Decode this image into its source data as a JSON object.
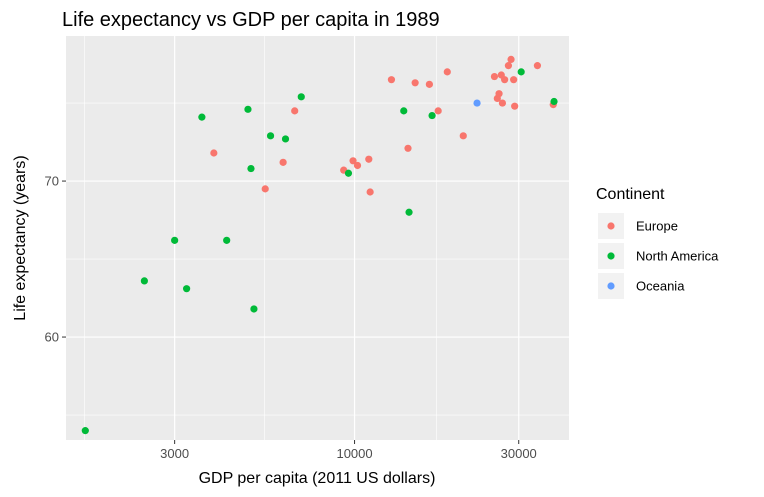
{
  "chart_data": {
    "type": "scatter",
    "title": "Life expectancy vs GDP per capita in 1989",
    "xlabel": "GDP per capita (2011 US dollars)",
    "ylabel": "Life expectancy (years)",
    "x_scale": "log10",
    "xlim": [
      1450,
      42000
    ],
    "ylim": [
      53.4,
      79.3
    ],
    "x_ticks": [
      3000,
      10000,
      30000
    ],
    "x_tick_labels": [
      "3000",
      "10000",
      "30000"
    ],
    "y_ticks": [
      60,
      70
    ],
    "y_tick_labels": [
      "60",
      "70"
    ],
    "grid": true,
    "legend": {
      "title": "Continent",
      "position": "right",
      "entries": [
        {
          "label": "Europe",
          "color": "#F8766D"
        },
        {
          "label": "North America",
          "color": "#00BA38"
        },
        {
          "label": "Oceania",
          "color": "#619CFF"
        }
      ]
    },
    "series": [
      {
        "name": "Europe",
        "color": "#F8766D",
        "points": [
          {
            "x": 3900,
            "y": 71.8
          },
          {
            "x": 5500,
            "y": 69.5
          },
          {
            "x": 6200,
            "y": 71.2
          },
          {
            "x": 6700,
            "y": 74.5
          },
          {
            "x": 9300,
            "y": 70.7
          },
          {
            "x": 9900,
            "y": 71.3
          },
          {
            "x": 10200,
            "y": 71.0
          },
          {
            "x": 11000,
            "y": 71.4
          },
          {
            "x": 11100,
            "y": 69.3
          },
          {
            "x": 12800,
            "y": 76.5
          },
          {
            "x": 14300,
            "y": 72.1
          },
          {
            "x": 15000,
            "y": 76.3
          },
          {
            "x": 16500,
            "y": 76.2
          },
          {
            "x": 17500,
            "y": 74.5
          },
          {
            "x": 18600,
            "y": 77.0
          },
          {
            "x": 20700,
            "y": 72.9
          },
          {
            "x": 25500,
            "y": 76.7
          },
          {
            "x": 26000,
            "y": 75.3
          },
          {
            "x": 26300,
            "y": 75.6
          },
          {
            "x": 26700,
            "y": 76.8
          },
          {
            "x": 26900,
            "y": 75.0
          },
          {
            "x": 27300,
            "y": 76.5
          },
          {
            "x": 28000,
            "y": 77.4
          },
          {
            "x": 28500,
            "y": 77.8
          },
          {
            "x": 29000,
            "y": 76.5
          },
          {
            "x": 29200,
            "y": 74.8
          },
          {
            "x": 34000,
            "y": 77.4
          },
          {
            "x": 37800,
            "y": 74.9
          }
        ]
      },
      {
        "name": "North America",
        "color": "#00BA38",
        "points": [
          {
            "x": 1650,
            "y": 54.0
          },
          {
            "x": 2450,
            "y": 63.6
          },
          {
            "x": 3000,
            "y": 66.2
          },
          {
            "x": 3250,
            "y": 63.1
          },
          {
            "x": 3600,
            "y": 74.1
          },
          {
            "x": 4250,
            "y": 66.2
          },
          {
            "x": 4900,
            "y": 74.6
          },
          {
            "x": 5000,
            "y": 70.8
          },
          {
            "x": 5100,
            "y": 61.8
          },
          {
            "x": 5700,
            "y": 72.9
          },
          {
            "x": 6300,
            "y": 72.7
          },
          {
            "x": 7000,
            "y": 75.4
          },
          {
            "x": 9600,
            "y": 70.5
          },
          {
            "x": 13900,
            "y": 74.5
          },
          {
            "x": 14400,
            "y": 68.0
          },
          {
            "x": 16800,
            "y": 74.2
          },
          {
            "x": 30500,
            "y": 77.0
          },
          {
            "x": 38000,
            "y": 75.1
          }
        ]
      },
      {
        "name": "Oceania",
        "color": "#619CFF",
        "points": [
          {
            "x": 22700,
            "y": 75.0
          }
        ]
      }
    ]
  }
}
